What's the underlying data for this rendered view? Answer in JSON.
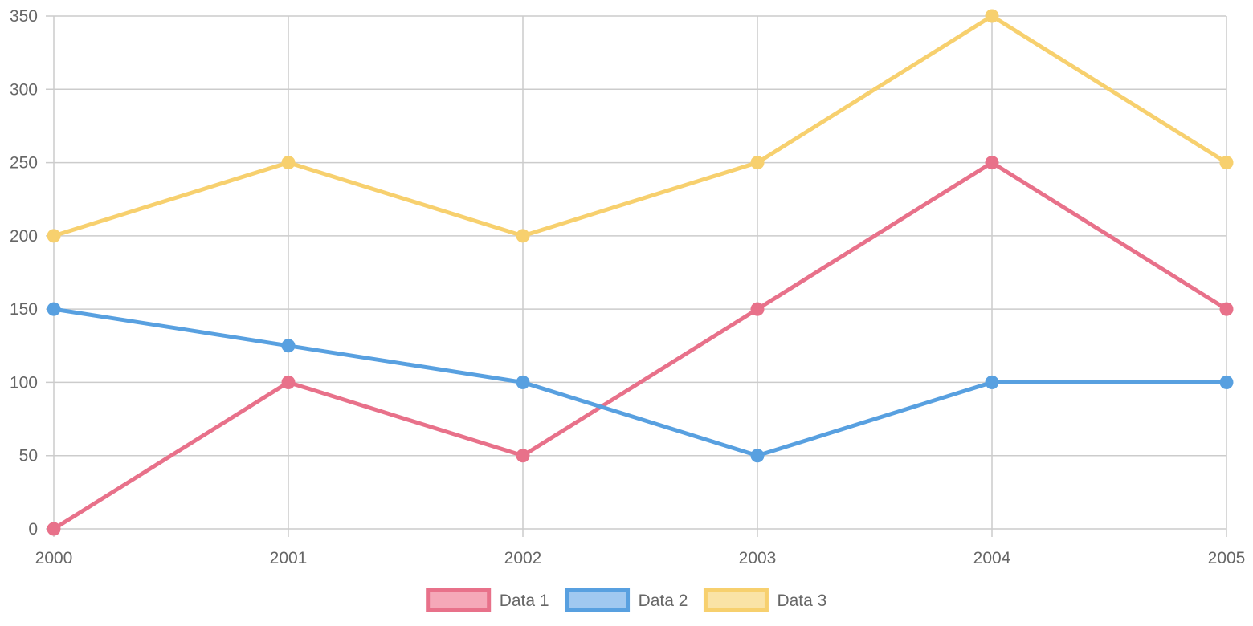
{
  "chart_data": {
    "type": "line",
    "title": "",
    "xlabel": "",
    "ylabel": "",
    "categories": [
      "2000",
      "2001",
      "2002",
      "2003",
      "2004",
      "2005"
    ],
    "ylim": [
      0,
      350
    ],
    "yticks": [
      0,
      50,
      100,
      150,
      200,
      250,
      300,
      350
    ],
    "grid": true,
    "legend_position": "bottom-center",
    "series": [
      {
        "name": "Data 1",
        "values": [
          0,
          100,
          50,
          150,
          250,
          150
        ],
        "color": "#e8718a",
        "fill": "#f5a8b8"
      },
      {
        "name": "Data 2",
        "values": [
          150,
          125,
          100,
          50,
          100,
          100
        ],
        "color": "#58a0e0",
        "fill": "#a0c8f0"
      },
      {
        "name": "Data 3",
        "values": [
          200,
          250,
          200,
          250,
          350,
          250
        ],
        "color": "#f7d06e",
        "fill": "#fae3a6"
      }
    ]
  },
  "colors": {
    "grid": "#cccccc",
    "tick_text": "#666666"
  }
}
